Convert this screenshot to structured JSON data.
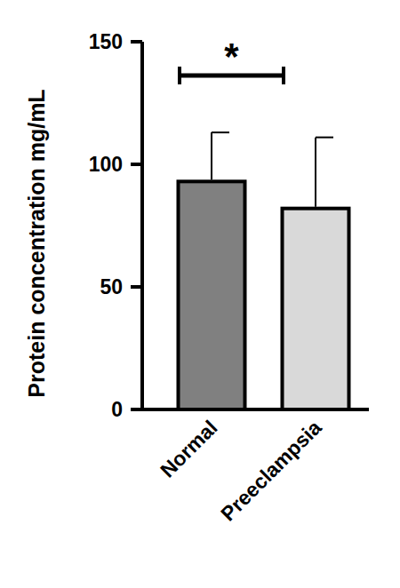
{
  "chart_data": {
    "type": "bar",
    "y_label": "Protein concentration mg/mL",
    "categories": [
      "Normal",
      "Preeclampsia"
    ],
    "values": [
      93,
      82
    ],
    "errors": [
      20,
      29
    ],
    "colors": [
      "#808080",
      "#d9d9d9"
    ],
    "ylim": [
      0,
      150
    ],
    "yticks": [
      0,
      50,
      100,
      150
    ],
    "grid": false,
    "annotation": "*"
  }
}
